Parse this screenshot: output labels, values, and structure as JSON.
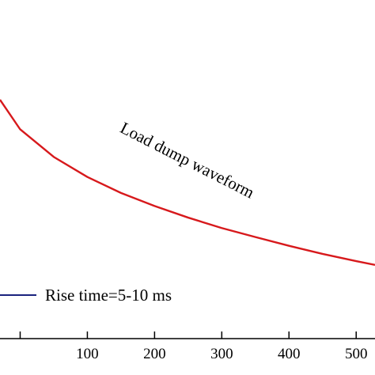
{
  "chart_data": {
    "type": "line",
    "title": "",
    "xlabel": "",
    "ylabel": "",
    "xlim": [
      -30,
      528
    ],
    "ylim": [
      0,
      1
    ],
    "x_ticks": [
      100,
      200,
      300,
      400,
      500
    ],
    "x_tick_labels": [
      "100",
      "200",
      "300",
      "400",
      "500"
    ],
    "grid": false,
    "series": [
      {
        "color": "#d7191c",
        "x": [
          -30,
          0,
          50,
          100,
          150,
          200,
          250,
          300,
          350,
          400,
          450,
          500,
          528
        ],
        "y": [
          0.82,
          0.718,
          0.623,
          0.554,
          0.499,
          0.454,
          0.414,
          0.378,
          0.347,
          0.317,
          0.289,
          0.264,
          0.251
        ]
      }
    ],
    "annotations": [
      {
        "text": "Load dump waveform",
        "x": 245,
        "y": 0.595,
        "rotation": 27
      }
    ],
    "legend": {
      "placement": "lower-left",
      "entries": [
        {
          "label": "Rise time=5-10 ms",
          "color": "#1a237e"
        }
      ]
    }
  }
}
